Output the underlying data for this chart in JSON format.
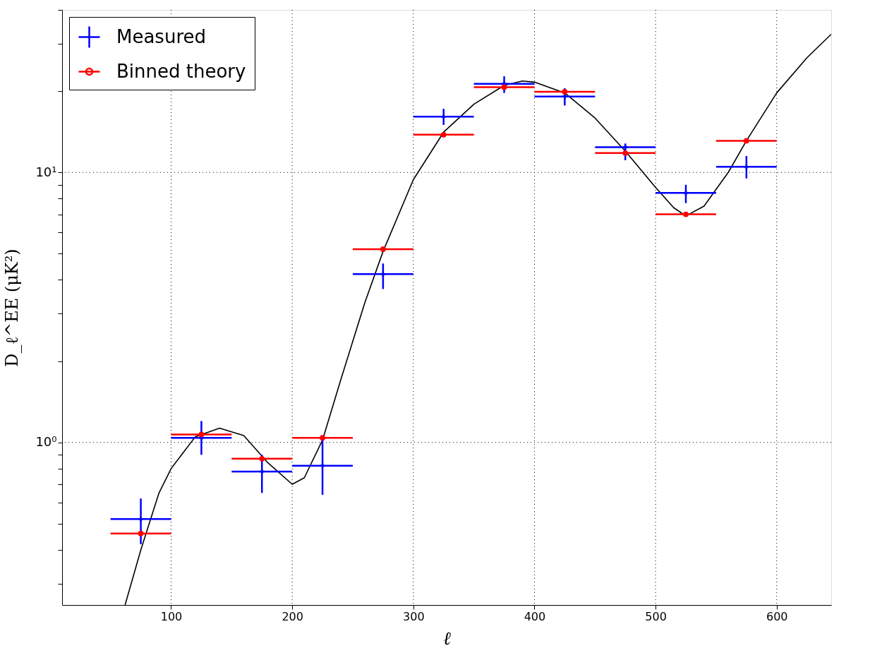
{
  "chart_data": {
    "type": "scatter",
    "xlabel": "ℓ",
    "ylabel": "D_ℓ^EE (μK²)",
    "log": "y",
    "grid": true,
    "legend": "top left",
    "xlim": [
      10,
      645
    ],
    "xticks": [
      100,
      200,
      300,
      400,
      500,
      600
    ],
    "ylim": [
      0.25,
      40
    ],
    "yticks": [
      {
        "value": 0.3,
        "label": null
      },
      {
        "value": 0.4,
        "label": null
      },
      {
        "value": 0.5,
        "label": null
      },
      {
        "value": 0.6,
        "label": null
      },
      {
        "value": 0.7,
        "label": null
      },
      {
        "value": 0.8,
        "label": null
      },
      {
        "value": 0.9,
        "label": null
      },
      {
        "value": 1,
        "label": "10⁰"
      },
      {
        "value": 2,
        "label": null
      },
      {
        "value": 3,
        "label": null
      },
      {
        "value": 4,
        "label": null
      },
      {
        "value": 5,
        "label": null
      },
      {
        "value": 6,
        "label": null
      },
      {
        "value": 7,
        "label": null
      },
      {
        "value": 8,
        "label": null
      },
      {
        "value": 9,
        "label": null
      },
      {
        "value": 10,
        "label": "10¹"
      },
      {
        "value": 20,
        "label": null
      },
      {
        "value": 30,
        "label": null
      },
      {
        "value": 40,
        "label": null
      }
    ],
    "series": [
      {
        "type": "line",
        "color": "#000000",
        "line_style": "solid",
        "x": [
          62,
          75,
          90,
          100,
          120,
          140,
          160,
          180,
          200,
          210,
          225,
          240,
          260,
          275,
          300,
          325,
          350,
          375,
          390,
          400,
          425,
          450,
          475,
          500,
          515,
          525,
          540,
          560,
          575,
          600,
          625,
          645
        ],
        "values": [
          0.25,
          0.4,
          0.65,
          0.8,
          1.05,
          1.13,
          1.06,
          0.84,
          0.7,
          0.74,
          1.02,
          1.7,
          3.3,
          5.1,
          9.4,
          14.1,
          17.9,
          21.0,
          21.8,
          21.6,
          19.7,
          15.9,
          12.0,
          8.8,
          7.4,
          6.9,
          7.5,
          10.0,
          13.1,
          19.7,
          26.6,
          32.5
        ]
      },
      {
        "name": "Measured",
        "color": "#0000ff",
        "marker": "cross",
        "x": [
          75,
          125,
          175,
          225,
          275,
          325,
          375,
          425,
          475,
          525,
          575
        ],
        "values": [
          0.52,
          1.04,
          0.78,
          0.82,
          4.2,
          16.1,
          21.3,
          19.1,
          12.4,
          8.4,
          10.5
        ],
        "errors": [
          [
            0.42,
            0.62
          ],
          [
            0.9,
            1.2
          ],
          [
            0.65,
            0.9
          ],
          [
            0.64,
            1.04
          ],
          [
            3.7,
            4.6
          ],
          [
            15.0,
            17.2
          ],
          [
            19.7,
            22.7
          ],
          [
            17.7,
            20.5
          ],
          [
            11.1,
            12.8
          ],
          [
            7.7,
            9.0
          ],
          [
            9.5,
            11.5
          ]
        ],
        "xerrors": [
          25,
          25,
          25,
          25,
          25,
          25,
          25,
          25,
          25,
          25,
          25
        ]
      },
      {
        "name": "Binned theory",
        "color": "#ff0000",
        "marker": "circle",
        "x": [
          75,
          125,
          175,
          225,
          275,
          325,
          375,
          425,
          475,
          525,
          575
        ],
        "values": [
          0.46,
          1.07,
          0.87,
          1.04,
          5.2,
          13.8,
          20.7,
          19.9,
          11.8,
          7.0,
          13.1
        ],
        "xerrors": [
          25,
          25,
          25,
          25,
          25,
          25,
          25,
          25,
          25,
          25,
          25
        ]
      }
    ]
  }
}
